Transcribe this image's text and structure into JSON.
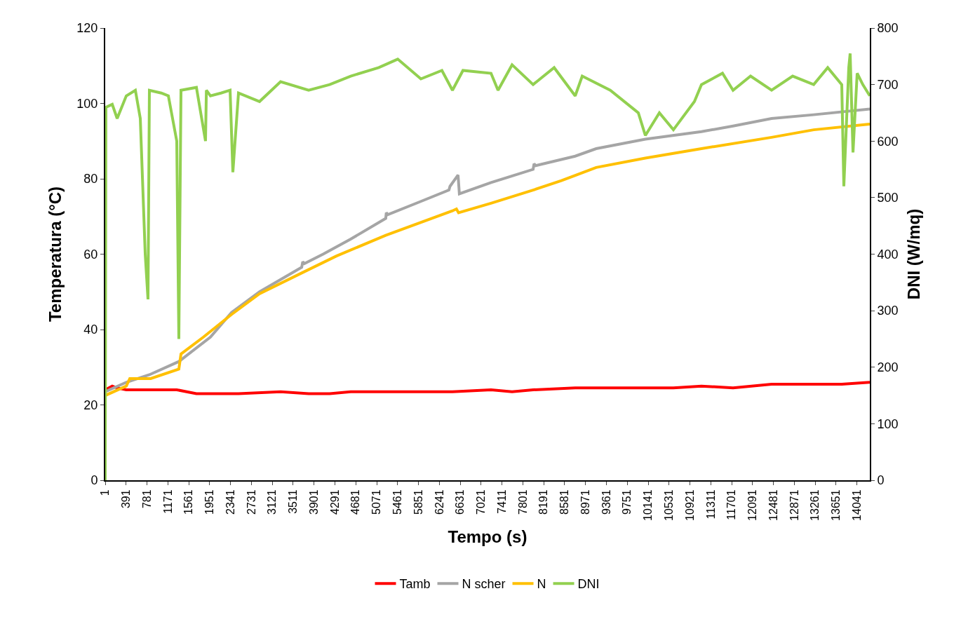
{
  "chart_data": {
    "type": "line",
    "xlabel": "Tempo (s)",
    "ylabel": "Temperatura (°C)",
    "y2label": "DNI (W/mq)",
    "xlim": [
      1,
      14280
    ],
    "xticks": [
      1,
      391,
      781,
      1171,
      1561,
      1951,
      2341,
      2731,
      3121,
      3511,
      3901,
      4291,
      4681,
      5071,
      5461,
      5851,
      6241,
      6631,
      7021,
      7411,
      7801,
      8191,
      8581,
      8971,
      9361,
      9751,
      10141,
      10531,
      10921,
      11311,
      11701,
      12091,
      12481,
      12871,
      13261,
      13651,
      14041
    ],
    "ylim": [
      0,
      120
    ],
    "yticks": [
      0,
      20,
      40,
      60,
      80,
      100,
      120
    ],
    "y2lim": [
      0,
      800
    ],
    "y2ticks": [
      0,
      100,
      200,
      300,
      400,
      500,
      600,
      700,
      800
    ],
    "legend": "bottom",
    "marker": "none",
    "line_style": "solid",
    "series": [
      {
        "name": "Tamb",
        "color": "#ff0000",
        "x": [
          1,
          132,
          224,
          394,
          656,
          1049,
          1337,
          1704,
          1966,
          2490,
          3276,
          3800,
          4193,
          4586,
          5110,
          5896,
          6486,
          7206,
          7599,
          7992,
          8778,
          9433,
          10088,
          10612,
          11136,
          11726,
          12446,
          13232,
          13756,
          14280
        ],
        "values": [
          24,
          25,
          24.5,
          24,
          24,
          24,
          24,
          23,
          23,
          23,
          23.5,
          23,
          23,
          23.5,
          23.5,
          23.5,
          23.5,
          24,
          23.5,
          24,
          24.5,
          24.5,
          24.5,
          24.5,
          25,
          24.5,
          25.5,
          25.5,
          25.5,
          26
        ]
      },
      {
        "name": "N scher",
        "color": "#a5a5a5",
        "x": [
          1,
          394,
          826,
          1376,
          1966,
          2360,
          2883,
          3670,
          3690,
          3720,
          4070,
          4586,
          5240,
          5250,
          5280,
          5896,
          6420,
          6440,
          6590,
          6615,
          7206,
          7992,
          8010,
          8040,
          8778,
          9170,
          10088,
          11136,
          11726,
          12446,
          13232,
          14280
        ],
        "values": [
          23.5,
          26,
          28,
          31.5,
          38,
          44.5,
          50,
          56.5,
          58,
          57.5,
          60,
          64,
          69.5,
          71,
          70.5,
          74,
          77,
          78,
          81,
          76,
          79,
          82.5,
          84,
          83.5,
          86,
          88,
          90.5,
          92.5,
          94,
          96,
          97,
          98.5
        ]
      },
      {
        "name": "N",
        "color": "#ffc000",
        "x": [
          1,
          394,
          460,
          850,
          1376,
          1416,
          1835,
          2360,
          2883,
          3670,
          4320,
          5240,
          6486,
          6560,
          6600,
          7206,
          7992,
          8520,
          9170,
          10088,
          11136,
          12446,
          13232,
          14280
        ],
        "values": [
          22.5,
          25,
          27,
          27,
          29.5,
          33.5,
          38,
          44,
          49.5,
          55,
          59.5,
          65,
          71.5,
          72,
          71,
          73.5,
          77,
          79.5,
          83,
          85.5,
          88,
          91,
          93,
          94.5
        ]
      },
      {
        "name": "DNI",
        "color": "#92d050",
        "axis": "y2",
        "x": [
          1,
          14,
          132,
          224,
          394,
          564,
          656,
          748,
          800,
          826,
          1049,
          1180,
          1337,
          1376,
          1416,
          1704,
          1874,
          1890,
          1966,
          2163,
          2333,
          2385,
          2490,
          2883,
          3276,
          3800,
          4193,
          4586,
          5110,
          5464,
          5896,
          6289,
          6486,
          6682,
          7206,
          7337,
          7599,
          7992,
          8385,
          8778,
          8909,
          9433,
          9826,
          9957,
          10088,
          10350,
          10612,
          11005,
          11136,
          11529,
          11726,
          12053,
          12446,
          12839,
          13232,
          13494,
          13756,
          13795,
          13887,
          13913,
          13966,
          14044,
          14149,
          14280
        ],
        "values": [
          0,
          660,
          665,
          640,
          680,
          690,
          640,
          400,
          320,
          690,
          685,
          680,
          600,
          250,
          690,
          695,
          600,
          690,
          680,
          685,
          690,
          545,
          685,
          670,
          705,
          690,
          700,
          715,
          730,
          745,
          710,
          725,
          690,
          725,
          720,
          690,
          735,
          700,
          730,
          680,
          715,
          690,
          660,
          650,
          610,
          650,
          620,
          670,
          700,
          720,
          690,
          715,
          690,
          715,
          700,
          730,
          700,
          520,
          730,
          755,
          580,
          720,
          700,
          680
        ]
      }
    ]
  }
}
